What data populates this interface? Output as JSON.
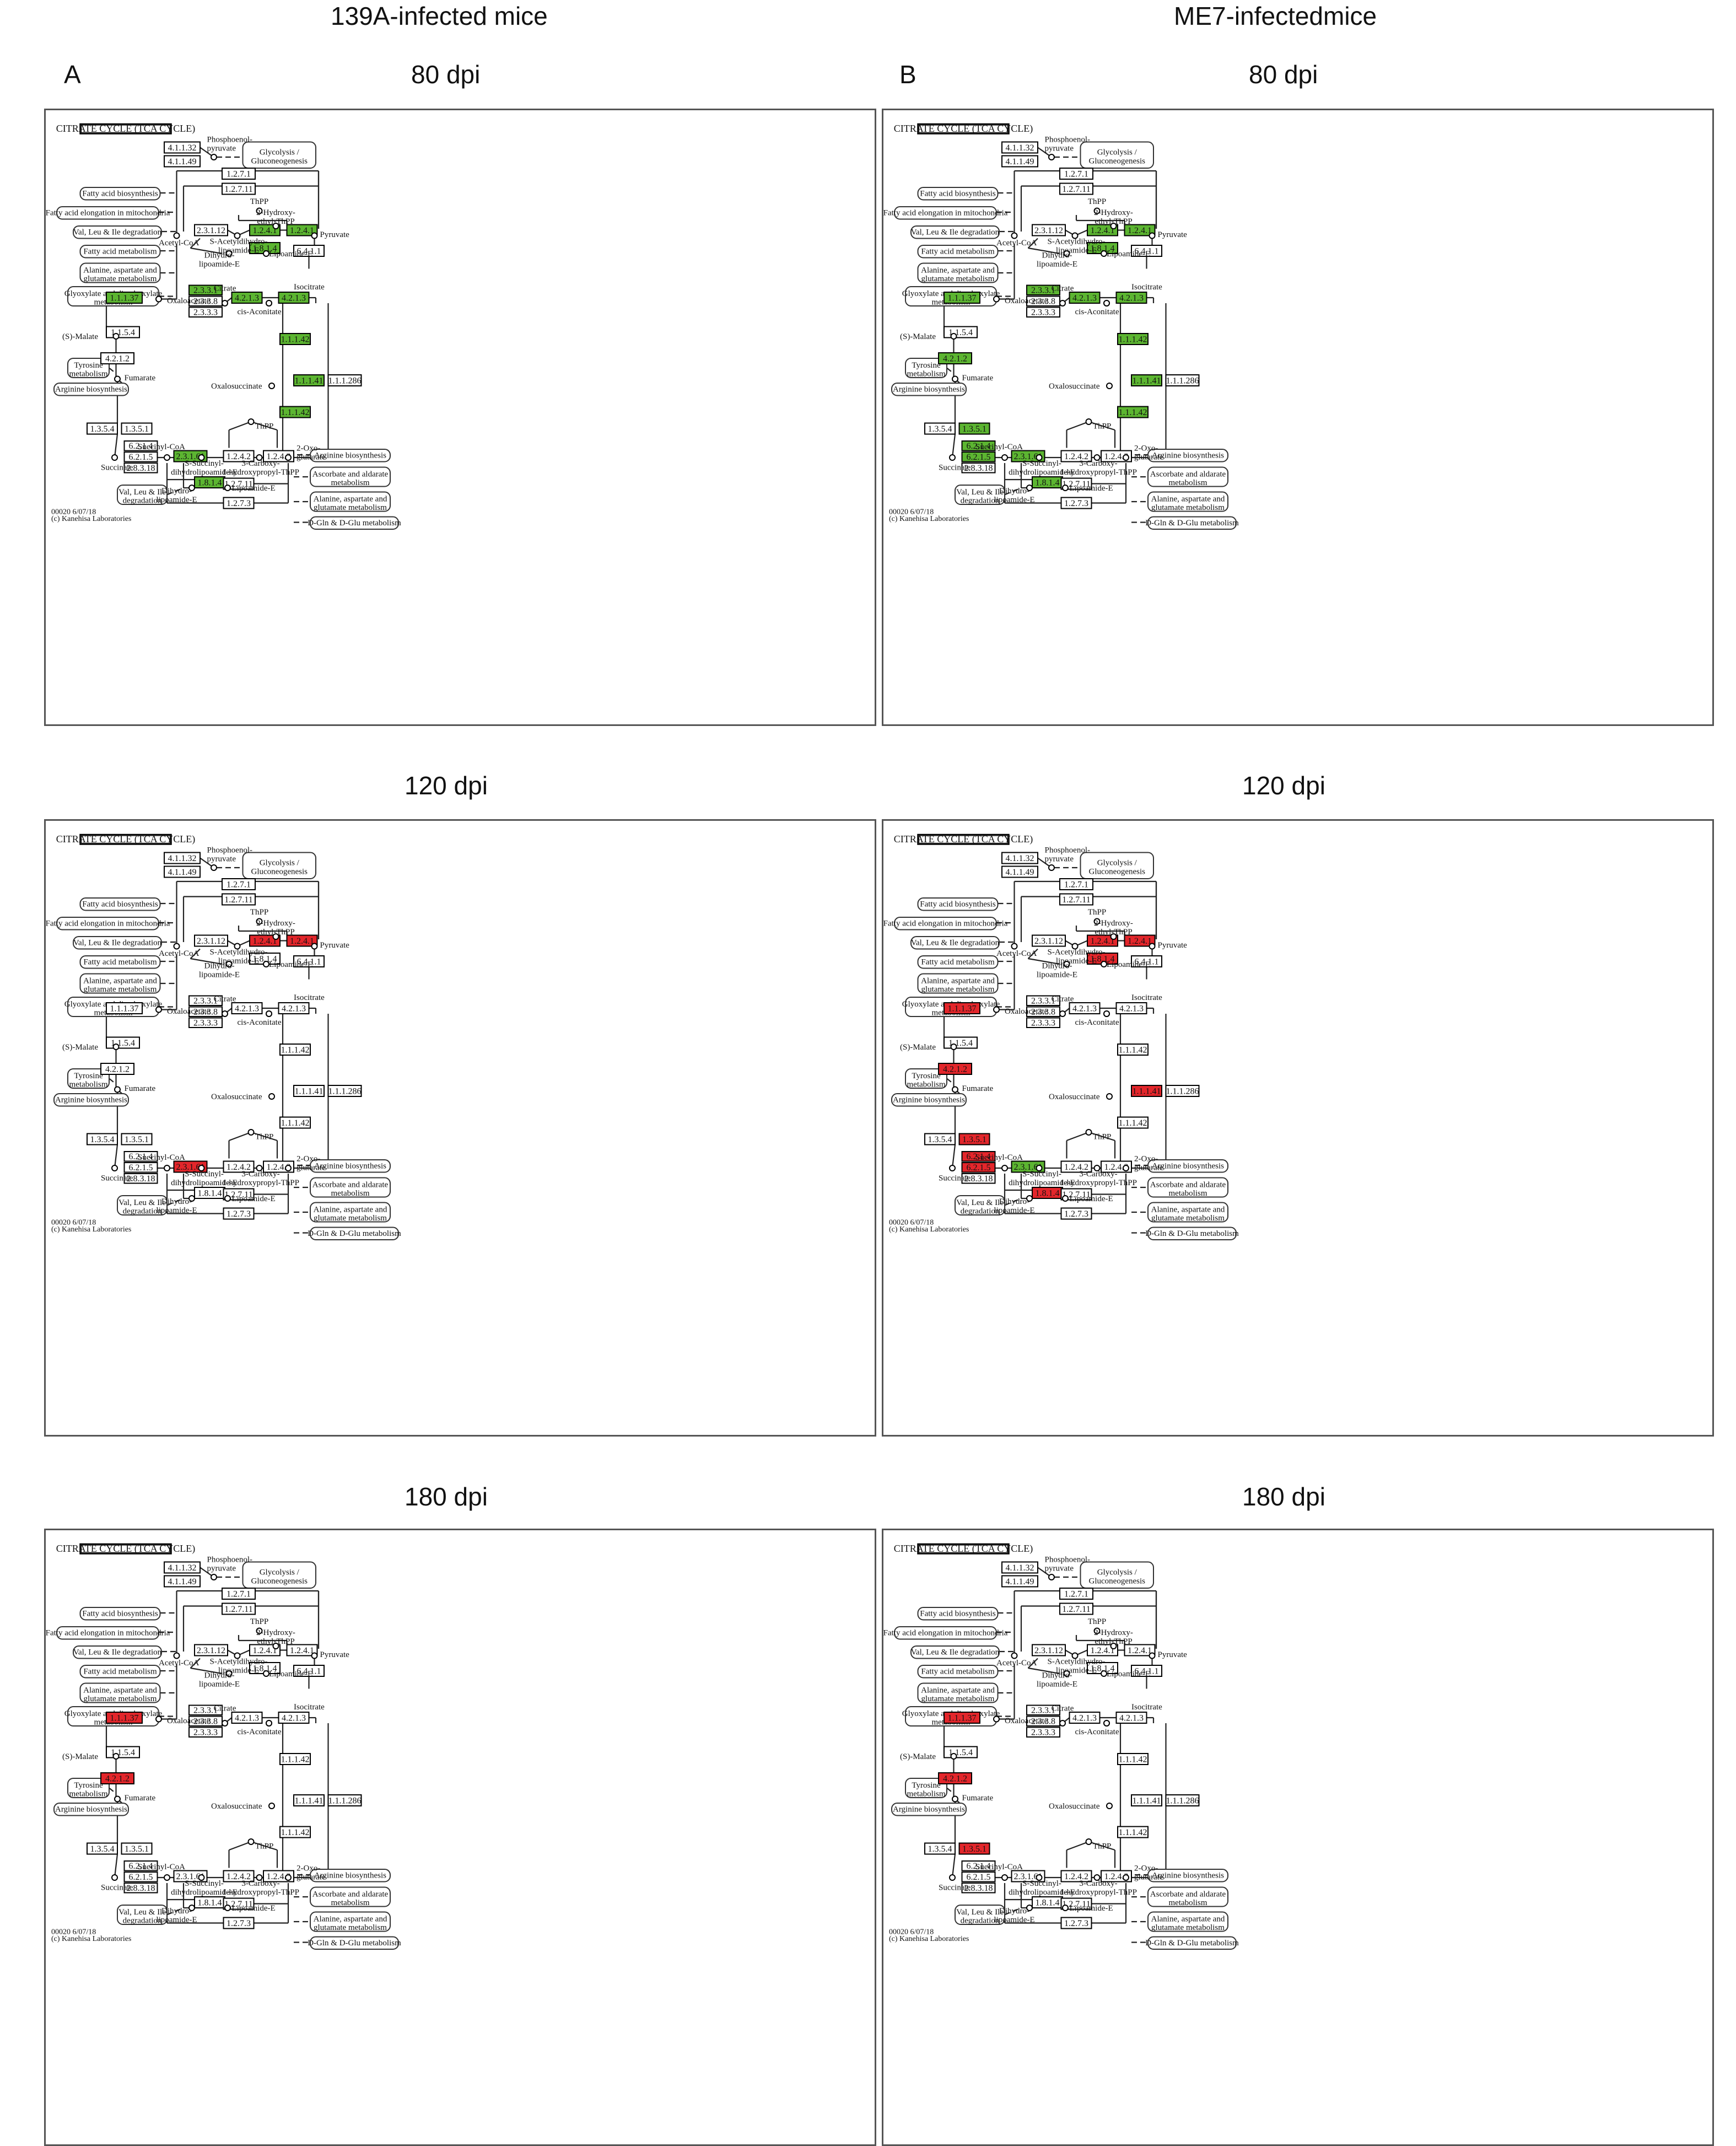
{
  "columns": [
    {
      "title": "139A-infected mice",
      "letter": "A"
    },
    {
      "title": "ME7-infectedmice",
      "letter": "B"
    }
  ],
  "timepoints": [
    "80 dpi",
    "120 dpi",
    "180 dpi"
  ],
  "colors": {
    "down": "#5cb531",
    "up": "#e3262b",
    "none": "#ffffff"
  },
  "map": {
    "title": "CITRATE CYCLE (TCA CYCLE)",
    "footer": [
      "00020 6/07/18",
      "(c) Kanehisa Laboratories"
    ],
    "enzymes": {
      "e41132": "4.1.1.32",
      "e41149": "4.1.1.49",
      "e1271a": "1.2.7.1",
      "e12711a": "1.2.7.11",
      "e23112": "2.3.1.12",
      "e1241a": "1.2.4.1",
      "e1241b": "1.2.4.1",
      "e1814a": "1.8.1.4",
      "e6411": "6.4.1.1",
      "e2331": "2.3.3.1",
      "e2338": "2.3.3.8",
      "e2333": "2.3.3.3",
      "e4213a": "4.2.1.3",
      "e4213b": "4.2.1.3",
      "e11137": "1.1.1.37",
      "e1154": "1.1.5.4",
      "e11142a": "1.1.1.42",
      "e11141": "1.1.1.41",
      "e111286": "1.1.1.286",
      "e11142b": "1.1.1.42",
      "e4212": "4.2.1.2",
      "e1354": "1.3.5.4",
      "e1351": "1.3.5.1",
      "e6214": "6.2.1.4",
      "e6215": "6.2.1.5",
      "e28318": "2.8.3.18",
      "e23161": "2.3.1.61",
      "e1242": "1.2.4.2",
      "e1243": "1.2.4.3",
      "e1814b": "1.8.1.4",
      "e12711b": "1.2.7.11",
      "e1273": "1.2.7.3"
    },
    "compounds": {
      "pep": "Phosphoenol-\npyruvate",
      "tpp1": "ThPP",
      "hydroxy": "2-Hydroxy-\nethyl-ThPP",
      "pyruvate": "Pyruvate",
      "acetylcoa": "Acetyl-CoA",
      "sacetyl": "S-Acetyldihydro-\nlipoamide-E",
      "dihydro1": "Dihydro-\nlipoamide-E",
      "lipoamide1": "Lipoamide-E",
      "citrate": "Citrate",
      "isocitrate": "Isocitrate",
      "cisaconitate": "cis-Aconitate",
      "oxaloacetate": "Oxaloacetate",
      "smalate": "(S)-Malate",
      "oxalosuccinate": "Oxalosuccinate",
      "fumarate": "Fumarate",
      "succinate": "Succinate",
      "succinylcoa": "Succinyl-CoA",
      "tpp2": "ThPP",
      "oxoglutarate": "2-Oxo-\nglutarate",
      "ssuccinyl": "S-Succinyl-\ndihydrolipoamide-E",
      "carboxy": "3-Carboxy-\n1-hydroxypropyl-ThPP",
      "dihydro2": "Dihydro-\nlipoamide-E",
      "lipoamide2": "Lipoamide-E"
    },
    "pathways": {
      "glycolysis": "Glycolysis /\nGluconeogenesis",
      "fab": "Fatty acid biosynthesis",
      "fae": "Fatty acid elongation in mitochondria",
      "vli1": "Val, Leu & Ile degradation",
      "fam": "Fatty acid metabolism",
      "ala": "Alanine, aspartate and\nglutamate metabolism",
      "gly": "Glyoxylate and dicarboxylate\nmetabolism",
      "tyr": "Tyrosine\nmetabolism",
      "arg1": "Arginine biosynthesis",
      "vli2": "Val, Leu & Ile\ndegradation",
      "arg2": "Arginine biosynthesis",
      "asc": "Ascorbate and aldarate\nmetabolism",
      "ala2": "Alanine, aspartate and\nglutamate metabolism",
      "dgln": "D-Gln & D-Glu metabolism"
    }
  },
  "panels": [
    {
      "column": 0,
      "time": 0,
      "down": [
        "e1241a",
        "e1241b",
        "e1814a",
        "e2331",
        "e4213a",
        "e4213b",
        "e11137",
        "e11142a",
        "e11141",
        "e11142b",
        "e23161",
        "e1814b"
      ],
      "up": []
    },
    {
      "column": 1,
      "time": 0,
      "down": [
        "e1241a",
        "e1241b",
        "e1814a",
        "e2331",
        "e4213a",
        "e4213b",
        "e11137",
        "e11142a",
        "e11141",
        "e11142b",
        "e4212",
        "e1351",
        "e6214",
        "e6215",
        "e23161",
        "e1814b"
      ],
      "up": []
    },
    {
      "column": 0,
      "time": 1,
      "down": [],
      "up": [
        "e1241a",
        "e1241b",
        "e23161"
      ]
    },
    {
      "column": 1,
      "time": 1,
      "down": [
        "e23161"
      ],
      "up": [
        "e1241a",
        "e1241b",
        "e1814a",
        "e11137",
        "e4212",
        "e1351",
        "e6214",
        "e6215",
        "e11141",
        "e1814b"
      ]
    },
    {
      "column": 0,
      "time": 2,
      "down": [],
      "up": [
        "e11137",
        "e4212"
      ]
    },
    {
      "column": 1,
      "time": 2,
      "down": [],
      "up": [
        "e11137",
        "e4212",
        "e1351"
      ]
    }
  ]
}
